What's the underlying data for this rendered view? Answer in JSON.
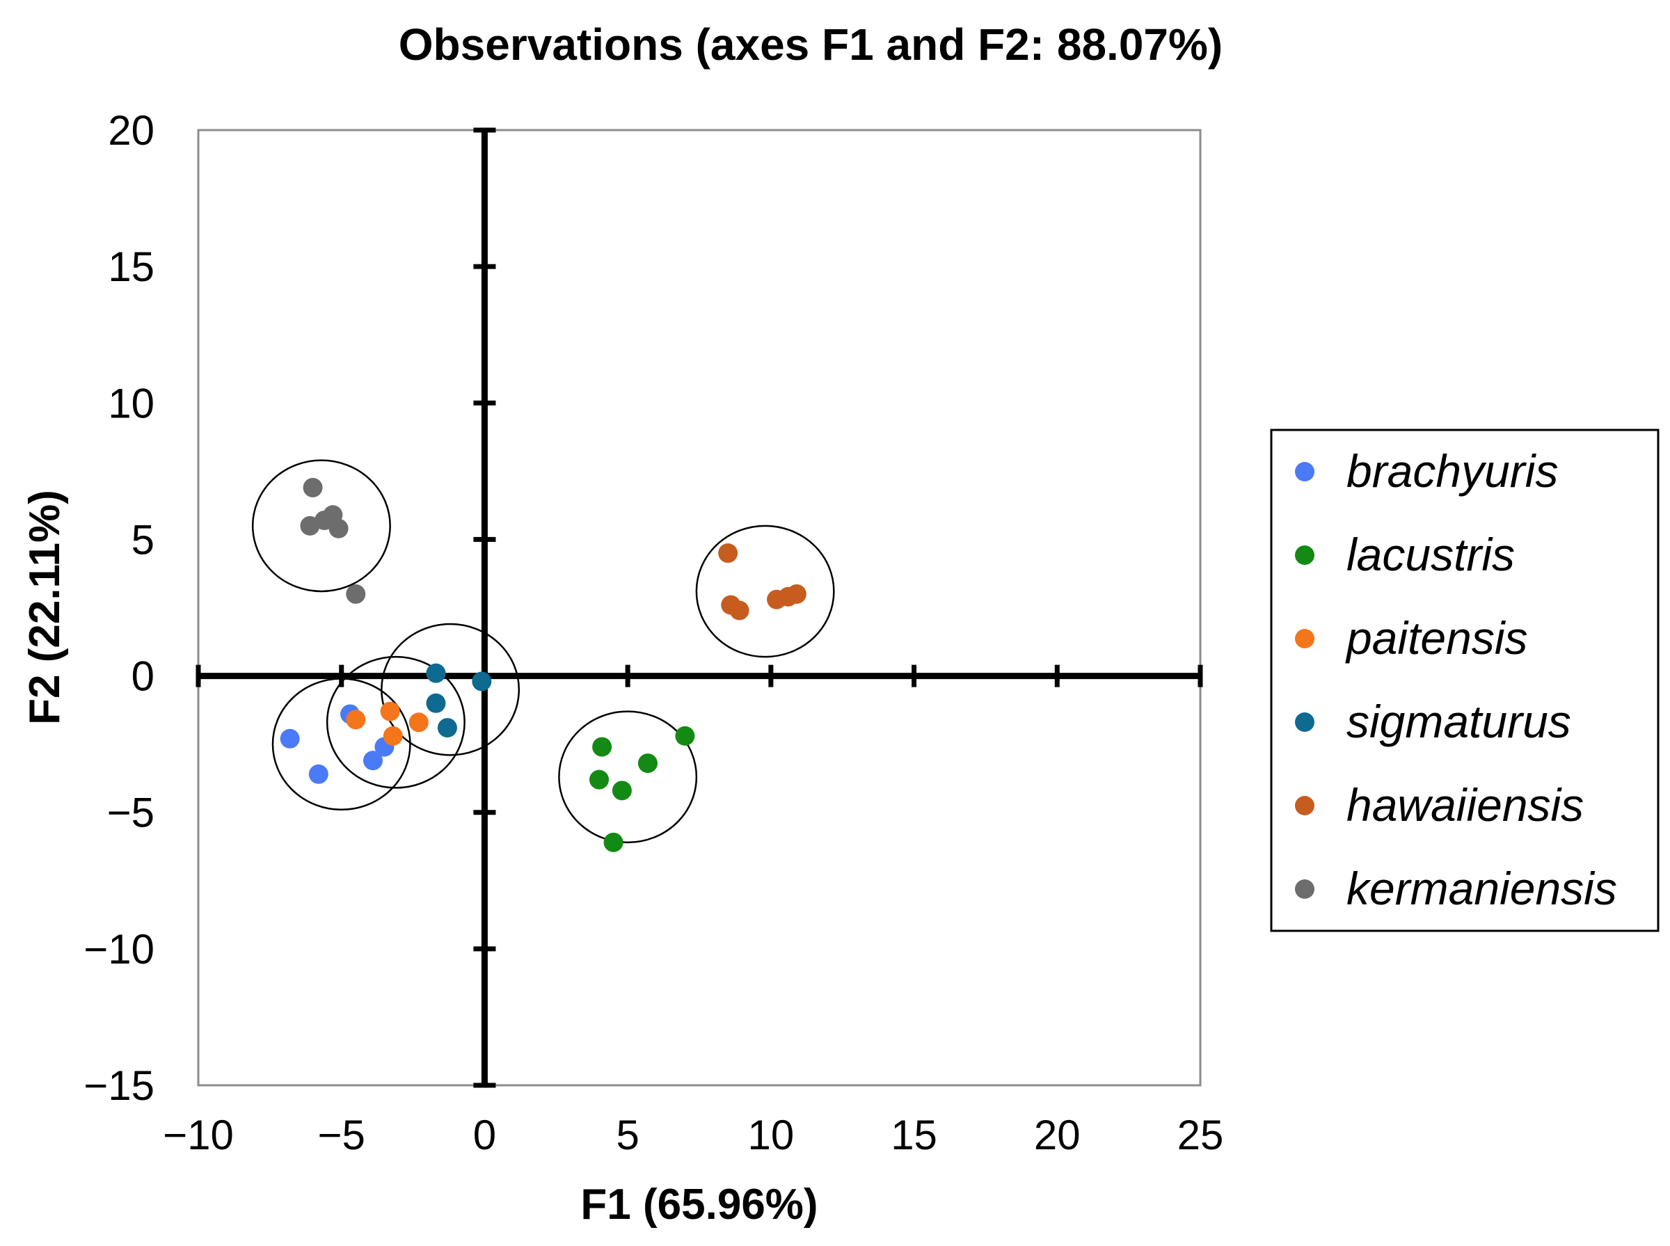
{
  "chart_data": {
    "type": "scatter",
    "title": "Observations (axes F1 and F2: 88.07%)",
    "xlabel": "F1 (65.96%)",
    "ylabel": "F2 (22.11%)",
    "xlim": [
      -10,
      25
    ],
    "ylim": [
      -15,
      20
    ],
    "xticks": [
      -10,
      -5,
      0,
      5,
      10,
      15,
      20,
      25
    ],
    "yticks": [
      -15,
      -10,
      -5,
      0,
      5,
      10,
      15,
      20
    ],
    "xtick_labels": [
      "−10",
      "−5",
      "0",
      "5",
      "10",
      "15",
      "20",
      "25"
    ],
    "ytick_labels": [
      "−15",
      "−10",
      "−5",
      "0",
      "5",
      "10",
      "15",
      "20"
    ],
    "grid": false,
    "legend_position": "right",
    "series": [
      {
        "name": "brachyuris",
        "color": "#4a7af5",
        "points": [
          [
            -6.8,
            -2.3
          ],
          [
            -5.8,
            -3.6
          ],
          [
            -4.7,
            -1.4
          ],
          [
            -3.5,
            -2.6
          ],
          [
            -3.9,
            -3.1
          ]
        ],
        "ellipse": {
          "cx": -5.0,
          "cy": -2.5,
          "r": 2.4
        }
      },
      {
        "name": "lacustris",
        "color": "#138a13",
        "points": [
          [
            4.1,
            -2.6
          ],
          [
            4.0,
            -3.8
          ],
          [
            4.8,
            -4.2
          ],
          [
            5.7,
            -3.2
          ],
          [
            7.0,
            -2.2
          ],
          [
            4.5,
            -6.1
          ]
        ],
        "ellipse": {
          "cx": 5.0,
          "cy": -3.7,
          "r": 2.4
        }
      },
      {
        "name": "paitensis",
        "color": "#f5751a",
        "points": [
          [
            -4.5,
            -1.6
          ],
          [
            -3.3,
            -1.3
          ],
          [
            -3.2,
            -2.2
          ],
          [
            -2.3,
            -1.7
          ]
        ],
        "ellipse": {
          "cx": -3.1,
          "cy": -1.7,
          "r": 2.4
        }
      },
      {
        "name": "sigmaturus",
        "color": "#0e6a91",
        "points": [
          [
            -1.7,
            0.1
          ],
          [
            -1.7,
            -1.0
          ],
          [
            -1.3,
            -1.9
          ],
          [
            -0.1,
            -0.2
          ]
        ],
        "ellipse": {
          "cx": -1.2,
          "cy": -0.5,
          "r": 2.4
        }
      },
      {
        "name": "hawaiiensis",
        "color": "#c65d1f",
        "points": [
          [
            8.5,
            4.5
          ],
          [
            8.6,
            2.6
          ],
          [
            8.9,
            2.4
          ],
          [
            10.2,
            2.8
          ],
          [
            10.6,
            2.9
          ],
          [
            10.9,
            3.0
          ]
        ],
        "ellipse": {
          "cx": 9.8,
          "cy": 3.1,
          "r": 2.4
        }
      },
      {
        "name": "kermaniensis",
        "color": "#6d6d6d",
        "points": [
          [
            -6.0,
            6.9
          ],
          [
            -6.1,
            5.5
          ],
          [
            -5.6,
            5.7
          ],
          [
            -5.3,
            5.9
          ],
          [
            -5.1,
            5.4
          ],
          [
            -4.5,
            3.0
          ]
        ],
        "ellipse": {
          "cx": -5.7,
          "cy": 5.5,
          "r": 2.4
        }
      }
    ]
  }
}
